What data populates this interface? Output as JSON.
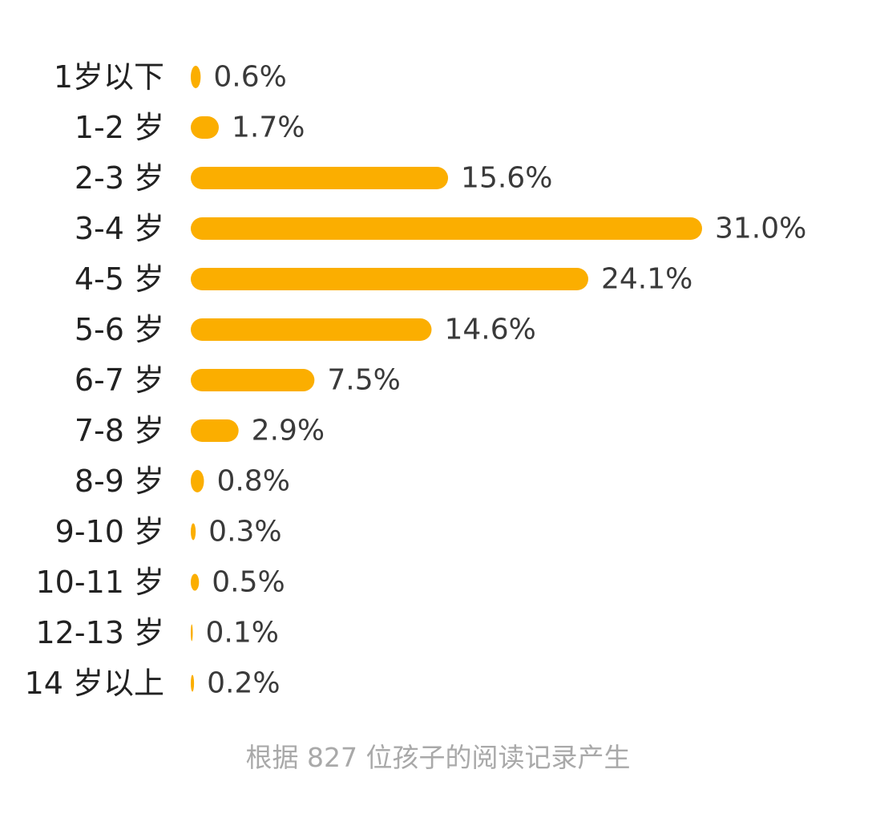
{
  "chart_data": {
    "type": "bar",
    "orientation": "horizontal",
    "categories": [
      "1岁以下",
      "1-2 岁",
      "2-3 岁",
      "3-4 岁",
      "4-5 岁",
      "5-6 岁",
      "6-7 岁",
      "7-8 岁",
      "8-9 岁",
      "9-10 岁",
      "10-11 岁",
      "12-13 岁",
      "14 岁以上"
    ],
    "values": [
      0.6,
      1.7,
      15.6,
      31.0,
      24.1,
      14.6,
      7.5,
      2.9,
      0.8,
      0.3,
      0.5,
      0.1,
      0.2
    ],
    "value_labels": [
      "0.6%",
      "1.7%",
      "15.6%",
      "31.0%",
      "24.1%",
      "14.6%",
      "7.5%",
      "2.9%",
      "0.8%",
      "0.3%",
      "0.5%",
      "0.1%",
      "0.2%"
    ],
    "unit": "%",
    "grid": false,
    "legend": "none",
    "bar_color": "#FBAE00",
    "footnote": "根据 827 位孩子的阅读记录产生"
  }
}
